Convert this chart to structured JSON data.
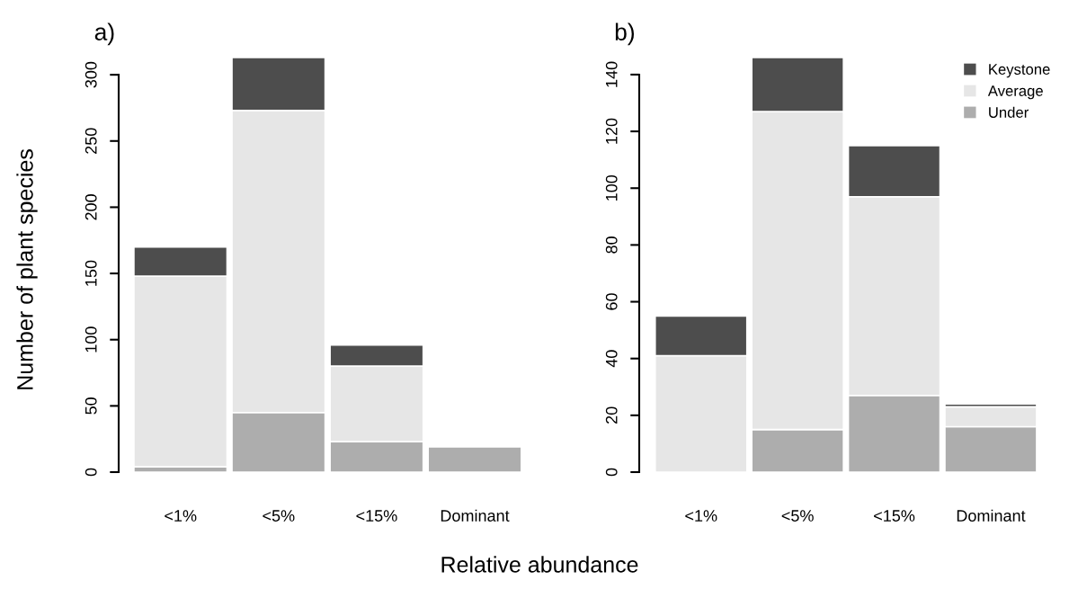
{
  "chart_data": [
    {
      "type": "bar",
      "title": "a)",
      "ylabel": "Number of plant species",
      "xlabel": "Relative abundance",
      "stacked": true,
      "legend": false,
      "grid": false,
      "categories": [
        "<1%",
        "<5%",
        "<15%",
        "Dominant"
      ],
      "series": [
        {
          "color": "#adadad",
          "values": [
            4,
            45,
            23,
            19
          ]
        },
        {
          "color": "#e6e6e6",
          "values": [
            144,
            228,
            57,
            0
          ]
        },
        {
          "color": "#4d4d4d",
          "values": [
            22,
            40,
            16,
            0
          ]
        }
      ],
      "ylim": [
        0,
        313
      ],
      "yticks": [
        0,
        50,
        100,
        150,
        200,
        250,
        300
      ]
    },
    {
      "type": "bar",
      "title": "b)",
      "stacked": true,
      "legend": "top right",
      "grid": false,
      "categories": [
        "<1%",
        "<5%",
        "<15%",
        "Dominant"
      ],
      "series": [
        {
          "name": "Under",
          "color": "#adadad",
          "values": [
            0,
            15,
            27,
            16
          ]
        },
        {
          "name": "Average",
          "color": "#e6e6e6",
          "values": [
            41,
            112,
            70,
            7
          ]
        },
        {
          "name": "Keystone",
          "color": "#4d4d4d",
          "values": [
            14,
            19,
            18,
            1
          ]
        }
      ],
      "ylim": [
        0,
        146
      ],
      "yticks": [
        0,
        20,
        40,
        60,
        80,
        100,
        120,
        140
      ]
    }
  ]
}
